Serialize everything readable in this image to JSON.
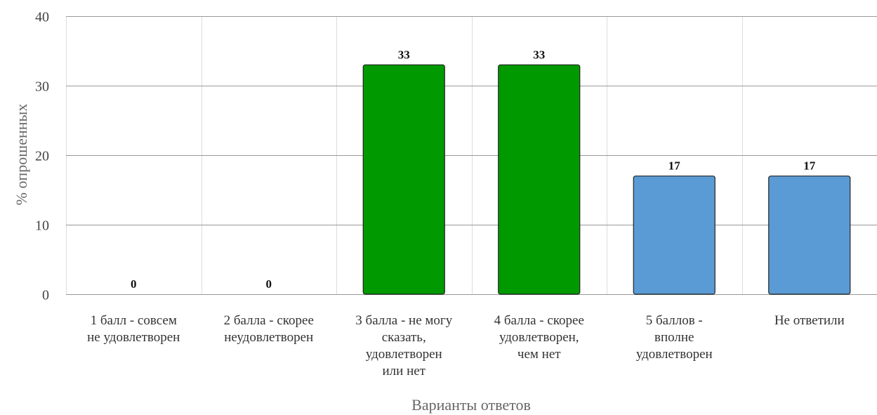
{
  "chart_data": {
    "type": "bar",
    "title": "",
    "xlabel": "Варианты ответов",
    "ylabel": "% опрошенных",
    "ylim": [
      0,
      40
    ],
    "yticks": [
      0,
      10,
      20,
      30,
      40
    ],
    "grid": true,
    "categories": [
      [
        "1 балл - совсем",
        "не удовлетворен"
      ],
      [
        "2 балла - скорее",
        "неудовлетворен"
      ],
      [
        "3 балла - не могу",
        "сказать,",
        "удовлетворен",
        "или нет"
      ],
      [
        "4 балла - скорее",
        "удовлетворен,",
        "чем нет"
      ],
      [
        "5 баллов -",
        "вполне",
        "удовлетворен"
      ],
      [
        "Не ответили"
      ]
    ],
    "values": [
      0,
      0,
      33,
      33,
      17,
      17
    ],
    "data_labels": [
      "0",
      "0",
      "33",
      "33",
      "17",
      "17"
    ],
    "bar_colors": [
      "#009900",
      "#009900",
      "#009900",
      "#009900",
      "#5b9bd5",
      "#5b9bd5"
    ]
  },
  "colors": {
    "grid_horizontal": "#999999",
    "grid_vertical": "#dddddd",
    "bar_border": "#222222"
  }
}
